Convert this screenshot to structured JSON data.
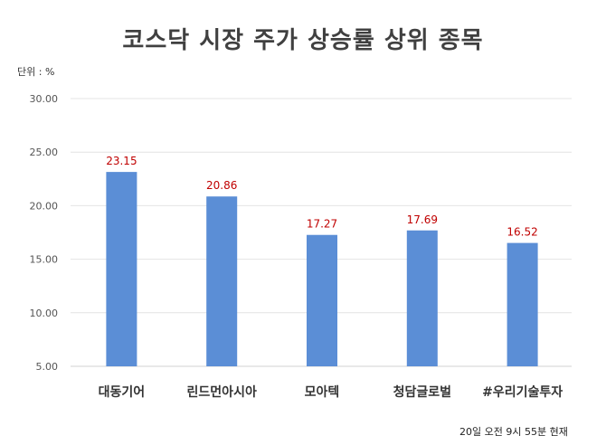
{
  "chart_data": {
    "type": "bar",
    "title": "코스닥 시장 주가 상승률 상위 종목",
    "unit_label": "단위 : %",
    "footnote": "20일 오전 9시 55분 현재",
    "categories": [
      "대동기어",
      "린드먼아시아",
      "모아텍",
      "청담글로벌",
      "#우리기술투자"
    ],
    "values": [
      23.15,
      20.86,
      17.27,
      17.69,
      16.52
    ],
    "value_labels": [
      "23.15",
      "20.86",
      "17.27",
      "17.69",
      "16.52"
    ],
    "ylim": [
      5,
      30
    ],
    "yticks": [
      "5.00",
      "10.00",
      "15.00",
      "20.00",
      "25.00",
      "30.00"
    ],
    "grid": true,
    "bar_color": "#5B8ED6",
    "label_color": "#C00000"
  }
}
